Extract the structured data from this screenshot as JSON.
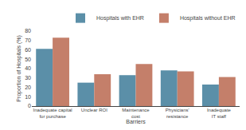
{
  "chart_data": {
    "type": "bar",
    "xlabel": "Barriers",
    "ylabel": "Proportion of Hospitals (%)",
    "categories": [
      "Inadequate capital\nfor purchase",
      "Unclear ROI",
      "Maintenance\ncost",
      "Physicians'\nresistance",
      "Inadequate\nIT staff"
    ],
    "series": [
      {
        "name": "Hospitals with EHR",
        "color": "#5b8fa8",
        "values": [
          61,
          25,
          33,
          38,
          23
        ]
      },
      {
        "name": "Hospitals without EHR",
        "color": "#c47f6a",
        "values": [
          73,
          34,
          45,
          37,
          31
        ]
      }
    ],
    "ylim": [
      0,
      80
    ],
    "yticks": [
      0,
      10,
      20,
      30,
      40,
      50,
      60,
      70,
      80
    ],
    "grid": false,
    "legend": "upper right"
  }
}
